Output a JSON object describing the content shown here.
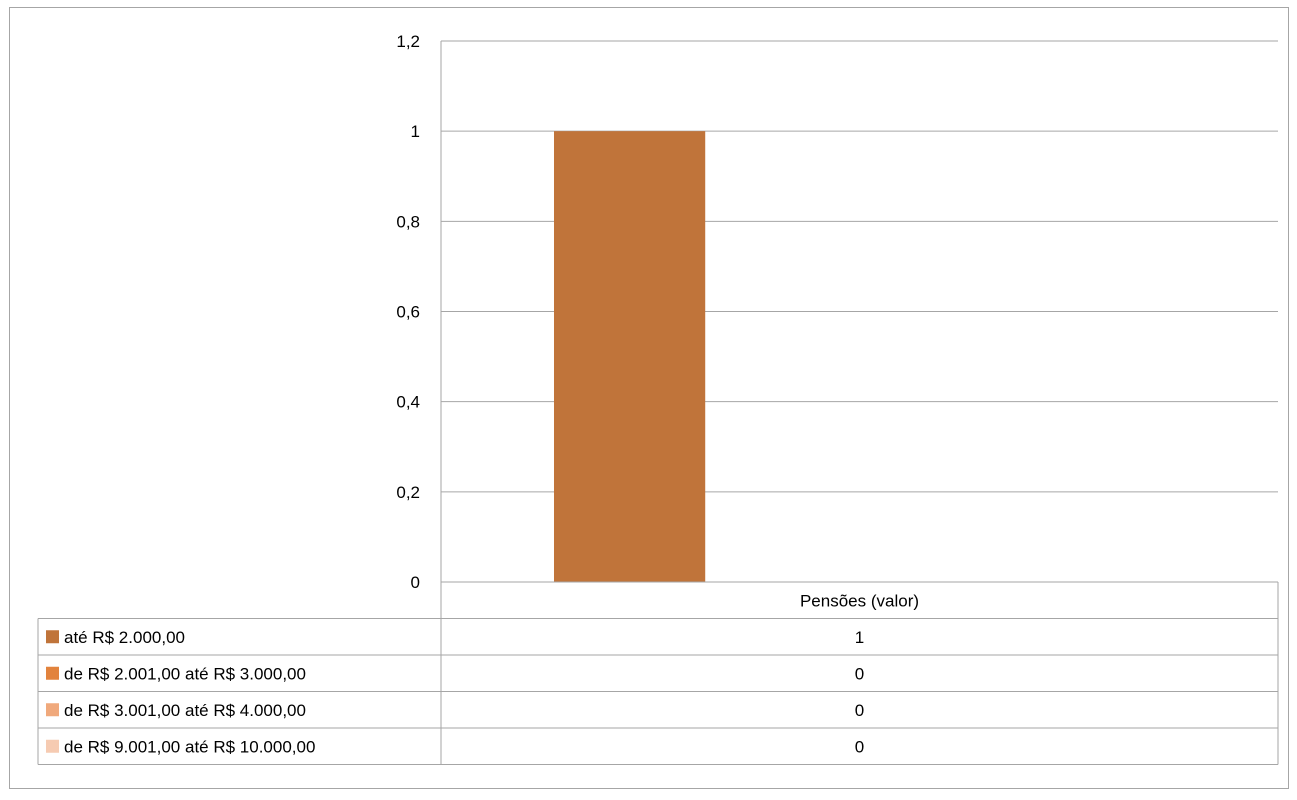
{
  "chart_data": {
    "type": "bar",
    "title": "",
    "xlabel": "",
    "ylabel": "",
    "categories": [
      "Pensões (valor)"
    ],
    "series": [
      {
        "name": "até R$ 2.000,00",
        "values": [
          1
        ],
        "color": "#c0743a"
      },
      {
        "name": "de R$ 2.001,00 até R$ 3.000,00",
        "values": [
          0
        ],
        "color": "#e2833d"
      },
      {
        "name": "de R$ 3.001,00 até R$ 4.000,00",
        "values": [
          0
        ],
        "color": "#f0a97c"
      },
      {
        "name": "de R$ 9.001,00 até R$ 10.000,00",
        "values": [
          0
        ],
        "color": "#f6cbb2"
      }
    ],
    "ylim": [
      0,
      1.2
    ],
    "yticks": [
      0,
      0.2,
      0.4,
      0.6,
      0.8,
      1,
      1.2
    ],
    "ytick_labels": [
      "0",
      "0,2",
      "0,4",
      "0,6",
      "0,8",
      "1",
      "1,2"
    ],
    "grid": true,
    "legend": "data-table",
    "data_table": {
      "header": "Pensões (valor)",
      "rows": [
        {
          "label": "até R$ 2.000,00",
          "value": "1"
        },
        {
          "label": "de R$ 2.001,00 até R$ 3.000,00",
          "value": "0"
        },
        {
          "label": "de R$ 3.001,00 até R$ 4.000,00",
          "value": "0"
        },
        {
          "label": "de R$ 9.001,00 até R$ 10.000,00",
          "value": "0"
        }
      ]
    }
  }
}
